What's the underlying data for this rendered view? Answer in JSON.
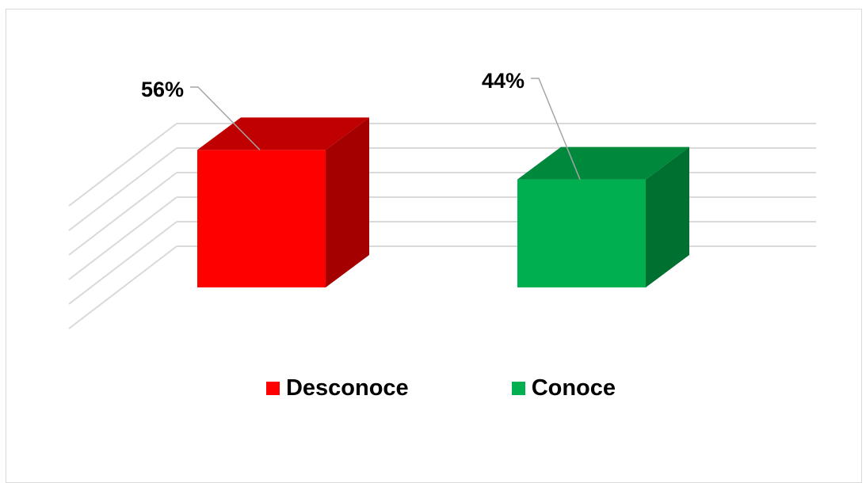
{
  "chart_data": {
    "type": "bar",
    "style": "3d",
    "categories": [
      "Desconoce",
      "Conoce"
    ],
    "values": [
      56,
      44
    ],
    "value_labels": [
      "56%",
      "44%"
    ],
    "colors": [
      "#ff0000",
      "#00b050"
    ],
    "side_colors": [
      "#a50000",
      "#007030"
    ],
    "top_colors": [
      "#c00000",
      "#00883c"
    ],
    "grid": true,
    "axis_labels_shown": false,
    "legend_position": "bottom",
    "legend": [
      "Desconoce",
      "Conoce"
    ]
  }
}
